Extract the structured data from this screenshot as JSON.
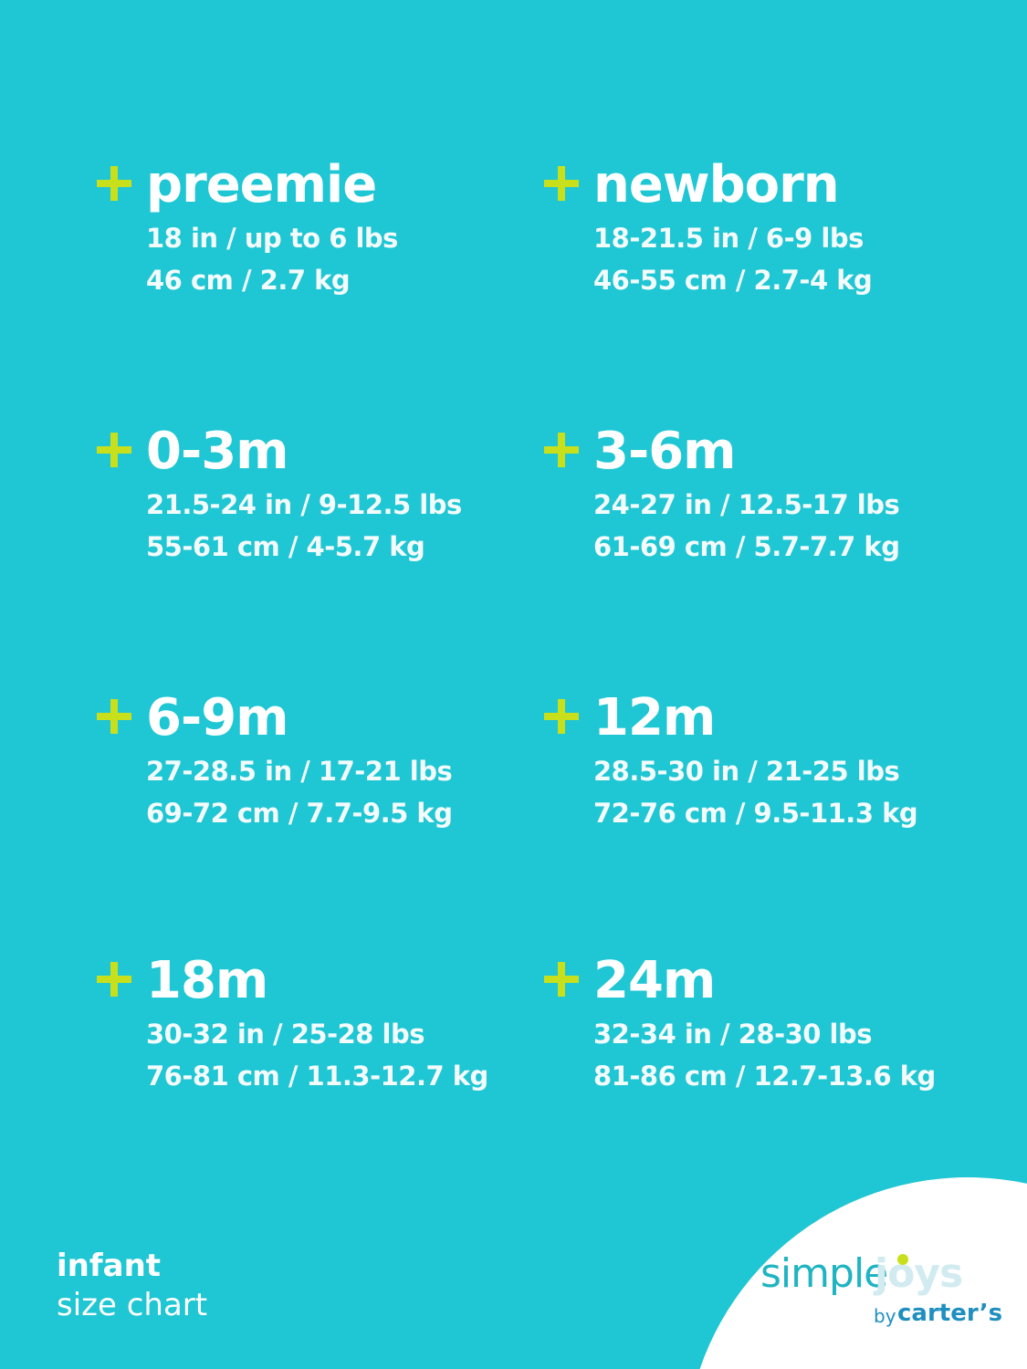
{
  "colors": {
    "background": "#1fc6d3",
    "plus": "#c8e01c",
    "text": "#ffffff"
  },
  "sizes": [
    {
      "label": "preemie",
      "imperial": "18 in / up to 6 lbs",
      "metric": "46 cm / 2.7 kg"
    },
    {
      "label": "newborn",
      "imperial": "18-21.5 in / 6-9 lbs",
      "metric": "46-55 cm / 2.7-4 kg"
    },
    {
      "label": "0-3m",
      "imperial": "21.5-24 in / 9-12.5 lbs",
      "metric": "55-61 cm / 4-5.7 kg"
    },
    {
      "label": "3-6m",
      "imperial": "24-27 in / 12.5-17 lbs",
      "metric": "61-69 cm / 5.7-7.7 kg"
    },
    {
      "label": "6-9m",
      "imperial": "27-28.5 in / 17-21 lbs",
      "metric": "69-72 cm / 7.7-9.5 kg"
    },
    {
      "label": "12m",
      "imperial": "28.5-30 in / 21-25 lbs",
      "metric": "72-76 cm / 9.5-11.3 kg"
    },
    {
      "label": "18m",
      "imperial": "30-32 in / 25-28 lbs",
      "metric": "76-81 cm / 11.3-12.7 kg"
    },
    {
      "label": "24m",
      "imperial": "32-34 in / 28-30 lbs",
      "metric": "81-86 cm / 12.7-13.6 kg"
    }
  ],
  "footer": {
    "line1": "infant",
    "line2": "size chart"
  },
  "logo": {
    "simple": "simple",
    "joys": "joys",
    "by": "by",
    "brand": "carter’s"
  }
}
